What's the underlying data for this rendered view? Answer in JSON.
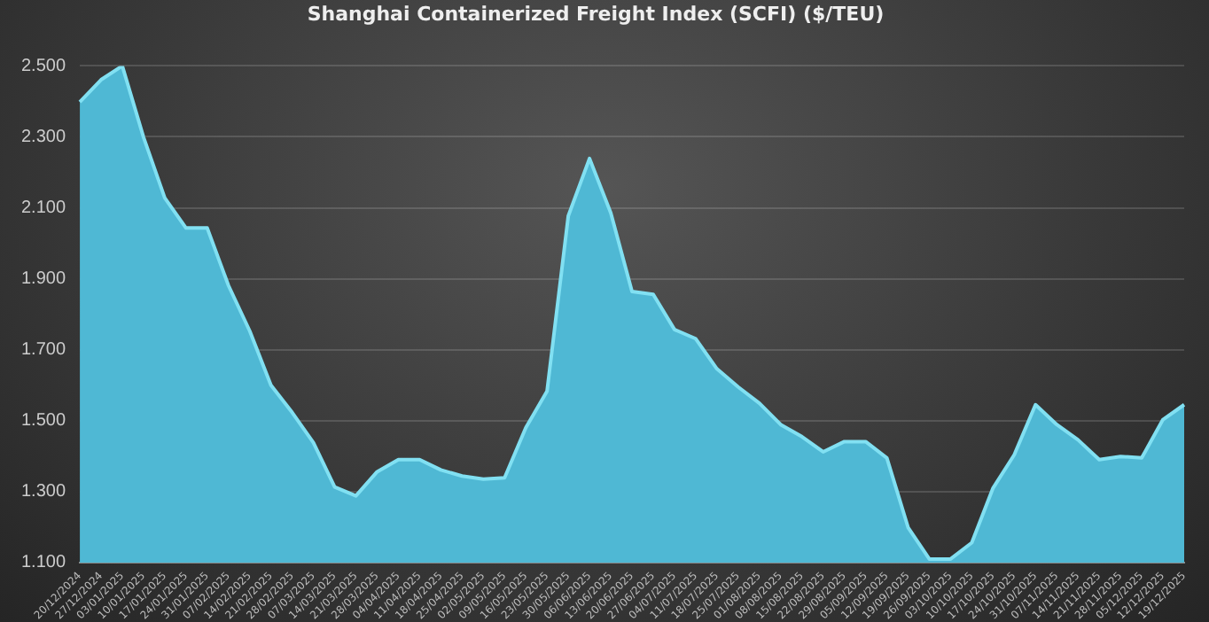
{
  "chart_data": {
    "type": "area",
    "title": "Shanghai Containerized Freight Index (SCFI) ($/TEU)",
    "categories": [
      "20/12/2024",
      "27/12/2024",
      "03/01/2025",
      "10/01/2025",
      "17/01/2025",
      "24/01/2025",
      "31/01/2025",
      "07/02/2025",
      "14/02/2025",
      "21/02/2025",
      "28/02/2025",
      "07/03/2025",
      "14/03/2025",
      "21/03/2025",
      "28/03/2025",
      "04/04/2025",
      "11/04/2025",
      "18/04/2025",
      "25/04/2025",
      "02/05/2025",
      "09/05/2025",
      "16/05/2025",
      "23/05/2025",
      "30/05/2025",
      "06/06/2025",
      "13/06/2025",
      "20/06/2025",
      "27/06/2025",
      "04/07/2025",
      "11/07/2025",
      "18/07/2025",
      "25/07/2025",
      "01/08/2025",
      "08/08/2025",
      "15/08/2025",
      "22/08/2025",
      "29/08/2025",
      "05/09/2025",
      "12/09/2025",
      "19/09/2025",
      "26/09/2025",
      "03/10/2025",
      "10/10/2025",
      "17/10/2025",
      "24/10/2025",
      "31/10/2025",
      "07/11/2025",
      "14/11/2025",
      "21/11/2025",
      "28/11/2025",
      "05/12/2025",
      "12/12/2025",
      "19/12/2025"
    ],
    "series": [
      {
        "color": "#4fb8d4",
        "values": [
          2398,
          2461,
          2500,
          2299,
          2128,
          2043,
          2043,
          1881,
          1753,
          1600,
          1523,
          1438,
          1313,
          1288,
          1356,
          1390,
          1390,
          1361,
          1344,
          1335,
          1339,
          1480,
          1583,
          2077,
          2239,
          2086,
          1864,
          1856,
          1757,
          1731,
          1646,
          1595,
          1549,
          1489,
          1455,
          1412,
          1441,
          1441,
          1395,
          1199,
          1110,
          1110,
          1156,
          1310,
          1404,
          1545,
          1489,
          1446,
          1390,
          1399,
          1395,
          1503,
          1545
        ]
      }
    ],
    "ylim": [
      1100,
      2500
    ],
    "yticks": [
      {
        "value": 1100,
        "label": "1.100"
      },
      {
        "value": 1300,
        "label": "1.300"
      },
      {
        "value": 1500,
        "label": "1.500"
      },
      {
        "value": 1700,
        "label": "1.700"
      },
      {
        "value": 1900,
        "label": "1.900"
      },
      {
        "value": 2100,
        "label": "2.100"
      },
      {
        "value": 2300,
        "label": "2.300"
      },
      {
        "value": 2500,
        "label": "2.500"
      }
    ],
    "grid": "y",
    "legend": false,
    "marker": "none",
    "line_style": "solid"
  }
}
